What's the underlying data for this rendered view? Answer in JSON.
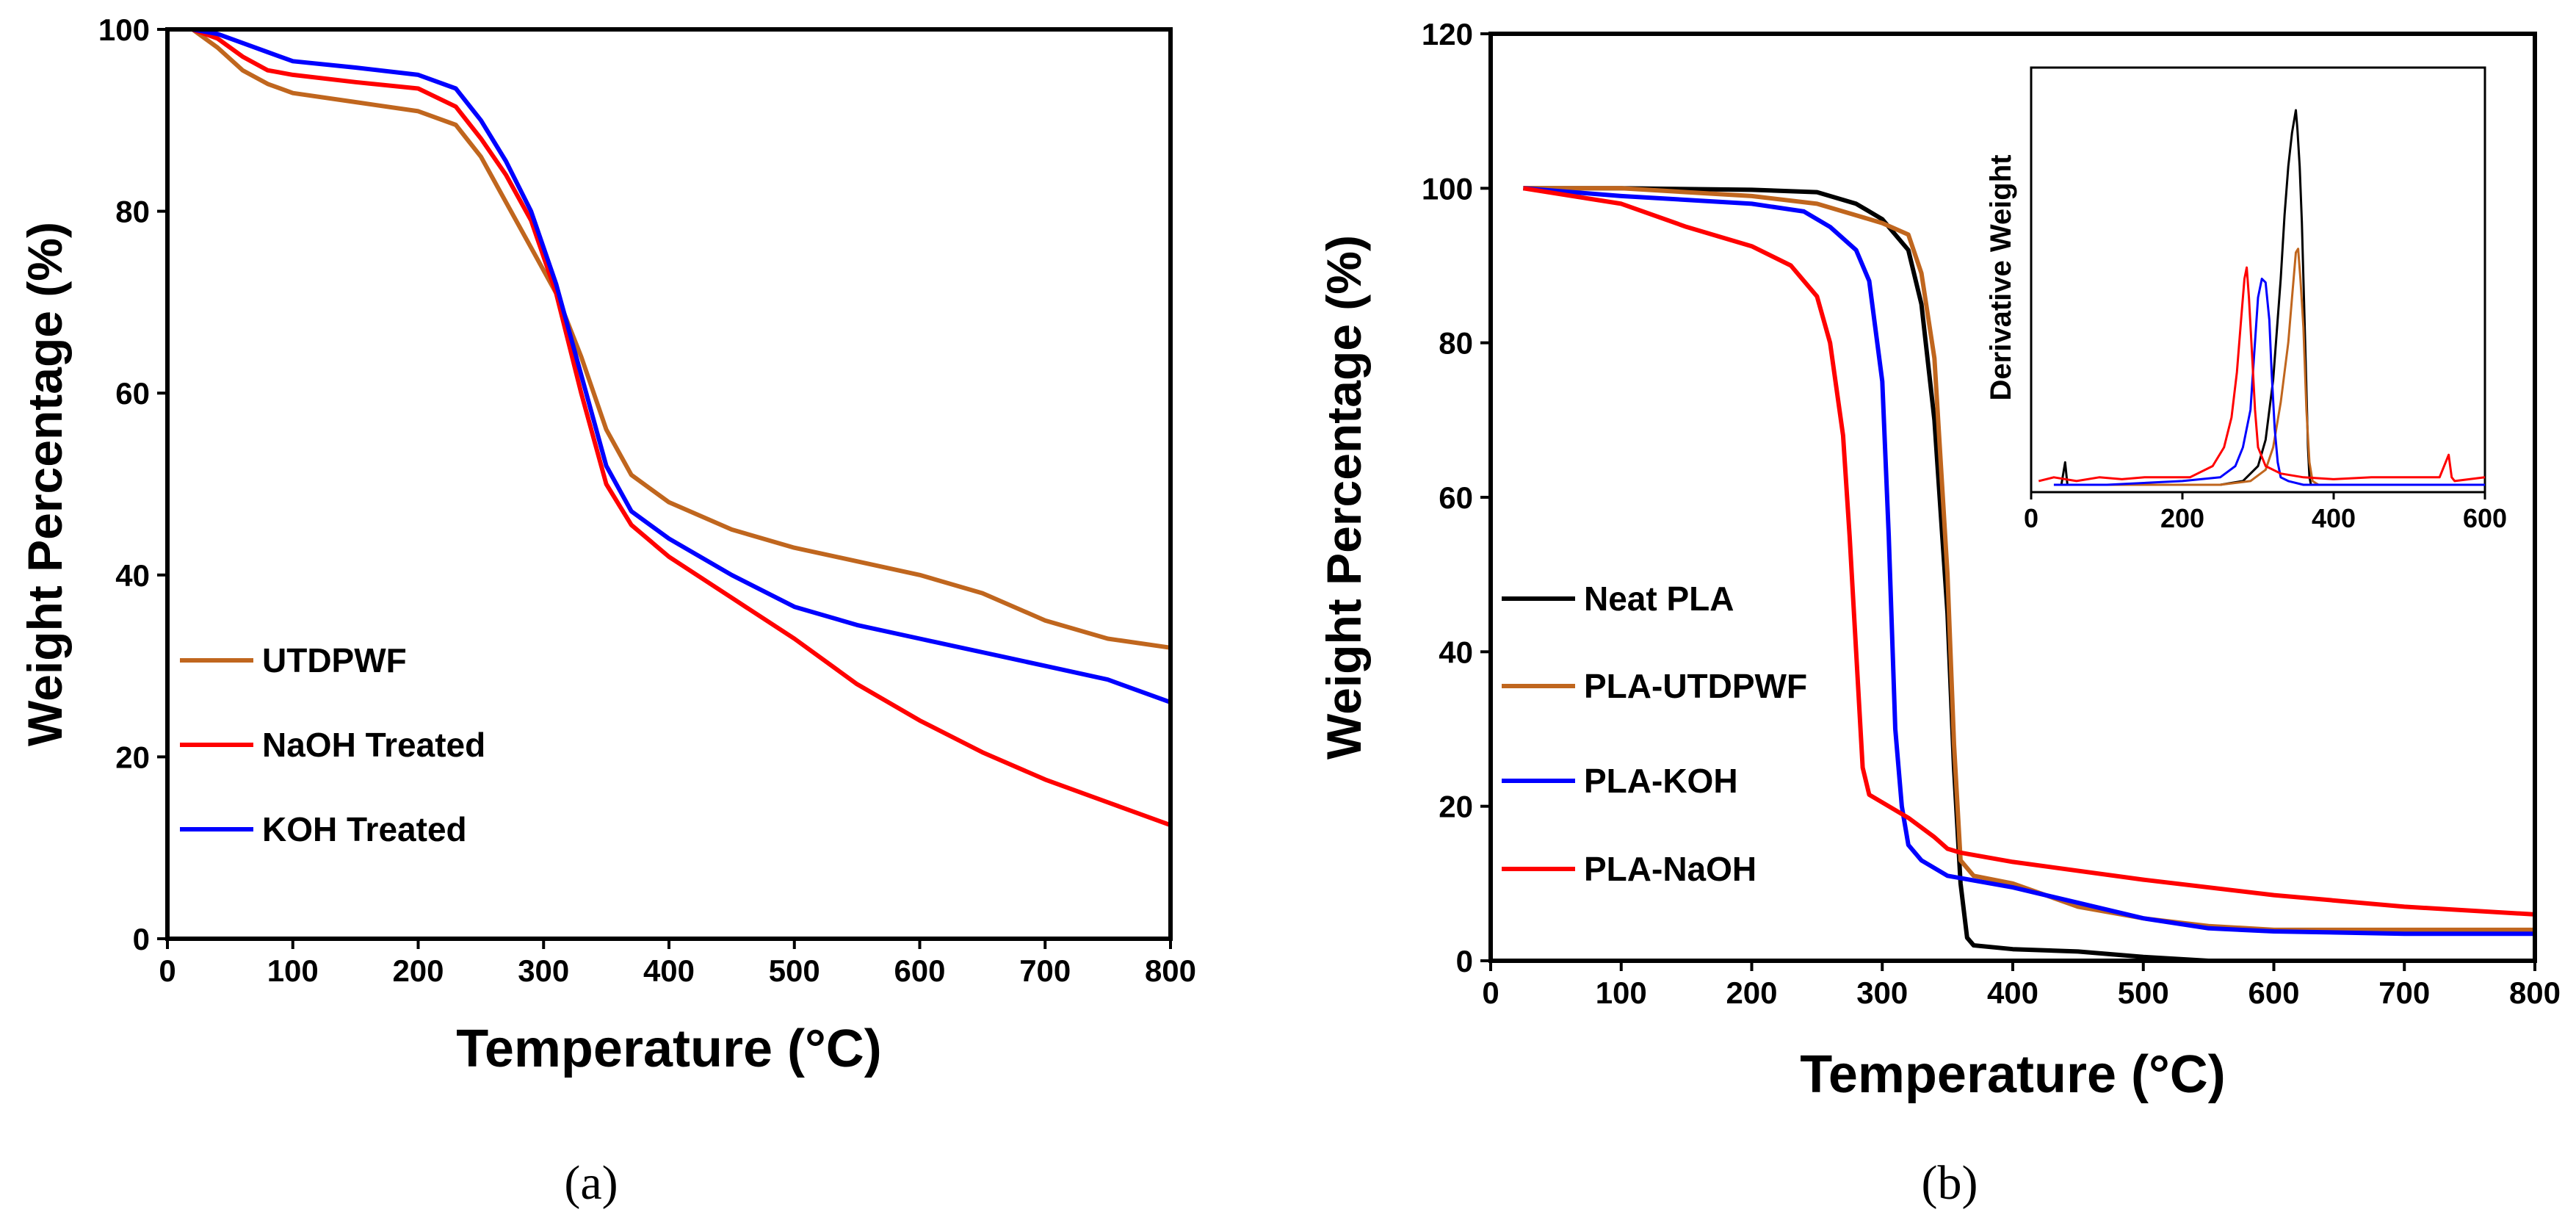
{
  "chart_data": [
    {
      "type": "line",
      "panel": "(a)",
      "xlabel": "Temperature (°C)",
      "ylabel": "Weight Percentage (%)",
      "xlim": [
        0,
        800
      ],
      "ylim": [
        0,
        100
      ],
      "xticks": [
        0,
        100,
        200,
        300,
        400,
        500,
        600,
        700,
        800
      ],
      "yticks": [
        0,
        20,
        40,
        60,
        80,
        100
      ],
      "legend_position": "lower-left",
      "series": [
        {
          "name": "UTDPWF",
          "color": "#C0661E",
          "x": [
            20,
            40,
            60,
            80,
            100,
            150,
            200,
            230,
            250,
            270,
            290,
            310,
            330,
            350,
            370,
            400,
            450,
            500,
            550,
            600,
            650,
            700,
            750,
            800
          ],
          "y": [
            100,
            98,
            95.5,
            94,
            93,
            92,
            91,
            89.5,
            86,
            81,
            76,
            71,
            64,
            56,
            51,
            48,
            45,
            43,
            41.5,
            40,
            38,
            35,
            33,
            32
          ]
        },
        {
          "name": "NaOH Treated",
          "color": "#FF0000",
          "x": [
            20,
            40,
            60,
            80,
            100,
            150,
            200,
            230,
            250,
            270,
            290,
            310,
            330,
            350,
            370,
            400,
            450,
            500,
            550,
            600,
            650,
            700,
            750,
            800
          ],
          "y": [
            100,
            99,
            97,
            95.5,
            95,
            94.2,
            93.5,
            91.5,
            88,
            84,
            79,
            71,
            60,
            50,
            45.5,
            42,
            37.5,
            33,
            28,
            24,
            20.5,
            17.5,
            15,
            12.5
          ]
        },
        {
          "name": "KOH Treated",
          "color": "#0000FF",
          "x": [
            20,
            40,
            60,
            80,
            100,
            150,
            200,
            230,
            250,
            270,
            290,
            310,
            330,
            350,
            370,
            400,
            450,
            500,
            550,
            600,
            650,
            700,
            750,
            800
          ],
          "y": [
            100,
            99.5,
            98.5,
            97.5,
            96.5,
            95.8,
            95,
            93.5,
            90,
            85.5,
            80,
            72,
            62,
            52,
            47,
            44,
            40,
            36.5,
            34.5,
            33,
            31.5,
            30,
            28.5,
            26
          ]
        }
      ],
      "caption": "(a)"
    },
    {
      "type": "line",
      "panel": "(b)",
      "xlabel": "Temperature (°C)",
      "ylabel": "Weight Percentage (%)",
      "xlim": [
        0,
        800
      ],
      "ylim": [
        0,
        120
      ],
      "xticks": [
        0,
        100,
        200,
        300,
        400,
        500,
        600,
        700,
        800
      ],
      "yticks": [
        0,
        20,
        40,
        60,
        80,
        100,
        120
      ],
      "legend_position": "lower-left",
      "series": [
        {
          "name": "Neat PLA",
          "color": "#000000",
          "x": [
            25,
            100,
            200,
            250,
            280,
            300,
            320,
            330,
            340,
            350,
            355,
            360,
            365,
            370,
            400,
            450,
            500,
            550,
            600,
            800
          ],
          "y": [
            100,
            100,
            99.8,
            99.5,
            98,
            96,
            92,
            85,
            70,
            45,
            25,
            10,
            3,
            2,
            1.5,
            1.2,
            0.5,
            0,
            0,
            0
          ]
        },
        {
          "name": "PLA-UTDPWF",
          "color": "#C0661E",
          "x": [
            25,
            100,
            200,
            250,
            280,
            300,
            320,
            330,
            340,
            350,
            355,
            360,
            370,
            400,
            450,
            500,
            550,
            600,
            700,
            800
          ],
          "y": [
            100,
            100,
            99,
            98,
            96.5,
            95.5,
            94,
            89,
            78,
            50,
            28,
            13,
            11,
            10,
            7,
            5.5,
            4.5,
            4,
            4,
            4
          ]
        },
        {
          "name": "PLA-KOH",
          "color": "#0000FF",
          "x": [
            25,
            100,
            150,
            200,
            240,
            260,
            280,
            290,
            300,
            305,
            310,
            315,
            320,
            330,
            350,
            400,
            450,
            500,
            550,
            600,
            700,
            800
          ],
          "y": [
            100,
            99,
            98.5,
            98,
            97,
            95,
            92,
            88,
            75,
            55,
            30,
            20,
            15,
            13,
            11,
            9.5,
            7.5,
            5.5,
            4.2,
            3.8,
            3.5,
            3.5
          ]
        },
        {
          "name": "PLA-NaOH",
          "color": "#FF0000",
          "x": [
            25,
            100,
            150,
            200,
            230,
            250,
            260,
            270,
            275,
            280,
            285,
            290,
            300,
            320,
            340,
            350,
            360,
            400,
            500,
            600,
            700,
            800
          ],
          "y": [
            100,
            98,
            95,
            92.5,
            90,
            86,
            80,
            68,
            55,
            40,
            25,
            21.5,
            20.5,
            18.5,
            16,
            14.5,
            14,
            12.8,
            10.5,
            8.5,
            7,
            6
          ]
        }
      ],
      "inset": {
        "ylabel": "Derivative Weight",
        "xlim": [
          0,
          600
        ],
        "xticks": [
          0,
          200,
          400,
          600
        ],
        "series": [
          {
            "name": "Neat PLA",
            "color": "#000000",
            "x": [
              40,
              45,
              48,
              50,
              100,
              200,
              250,
              280,
              300,
              310,
              320,
              330,
              335,
              340,
              345,
              350,
              352,
              355,
              358,
              362,
              366,
              368,
              370,
              400,
              500,
              600
            ],
            "y": [
              0,
              0.06,
              0,
              0,
              0,
              0,
              0,
              0.01,
              0.05,
              0.12,
              0.28,
              0.55,
              0.72,
              0.85,
              0.94,
              1.0,
              0.95,
              0.85,
              0.7,
              0.4,
              0.1,
              0.02,
              0,
              0,
              0,
              0
            ]
          },
          {
            "name": "PLA-UTDPWF",
            "color": "#C0661E",
            "x": [
              50,
              100,
              200,
              250,
              290,
              310,
              320,
              330,
              340,
              345,
              350,
              353,
              356,
              360,
              364,
              368,
              372,
              380,
              400,
              600
            ],
            "y": [
              0,
              0,
              0,
              0,
              0.01,
              0.04,
              0.1,
              0.22,
              0.38,
              0.5,
              0.62,
              0.63,
              0.55,
              0.42,
              0.2,
              0.06,
              0.01,
              0,
              0,
              0
            ]
          },
          {
            "name": "PLA-KOH",
            "color": "#0000FF",
            "x": [
              30,
              100,
              200,
              250,
              270,
              280,
              290,
              295,
              300,
              305,
              310,
              315,
              318,
              322,
              326,
              330,
              340,
              360,
              400,
              600
            ],
            "y": [
              0,
              0,
              0.01,
              0.02,
              0.05,
              0.1,
              0.2,
              0.35,
              0.5,
              0.55,
              0.54,
              0.44,
              0.3,
              0.15,
              0.06,
              0.02,
              0.01,
              0,
              0,
              0
            ]
          },
          {
            "name": "PLA-NaOH",
            "color": "#FF0000",
            "x": [
              10,
              30,
              60,
              90,
              120,
              150,
              180,
              210,
              240,
              255,
              265,
              272,
              278,
              282,
              285,
              288,
              292,
              296,
              300,
              310,
              330,
              360,
              400,
              450,
              500,
              540,
              552,
              556,
              560,
              600
            ],
            "y": [
              0.01,
              0.02,
              0.01,
              0.02,
              0.015,
              0.02,
              0.02,
              0.02,
              0.05,
              0.1,
              0.18,
              0.3,
              0.45,
              0.55,
              0.58,
              0.5,
              0.35,
              0.2,
              0.1,
              0.05,
              0.03,
              0.02,
              0.015,
              0.02,
              0.02,
              0.02,
              0.08,
              0.02,
              0.01,
              0.02
            ]
          }
        ]
      },
      "caption": "(b)"
    }
  ]
}
